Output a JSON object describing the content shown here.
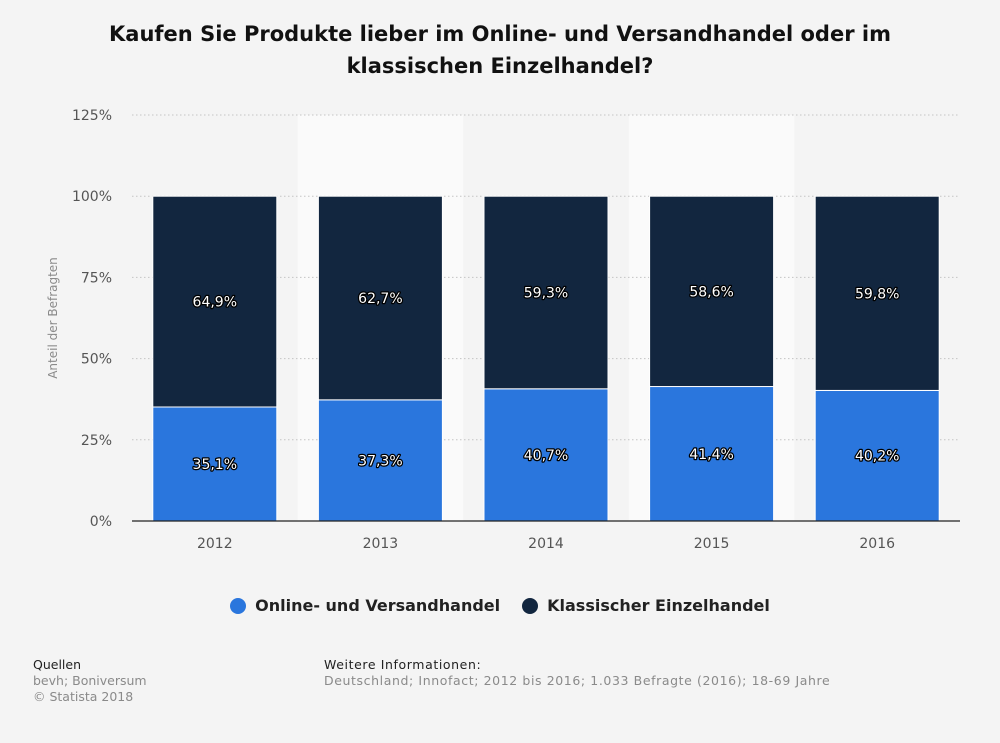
{
  "chart_data": {
    "type": "bar",
    "stacked": true,
    "title": "Kaufen Sie Produkte lieber im Online- und Versandhandel oder im klassischen Einzelhandel?",
    "title_lines": [
      "Kaufen Sie Produkte lieber im Online- und Versandhandel oder im",
      "klassischen Einzelhandel?"
    ],
    "categories": [
      "2012",
      "2013",
      "2014",
      "2015",
      "2016"
    ],
    "series": [
      {
        "name": "Online- und Versandhandel",
        "color": "#2a76dd",
        "values": [
          35.1,
          37.3,
          40.7,
          41.4,
          40.2
        ],
        "labels": [
          "35,1%",
          "37,3%",
          "40,7%",
          "41,4%",
          "40,2%"
        ]
      },
      {
        "name": "Klassischer Einzelhandel",
        "color": "#12263f",
        "values": [
          64.9,
          62.7,
          59.3,
          58.6,
          59.8
        ],
        "labels": [
          "64,9%",
          "62,7%",
          "59,3%",
          "58,6%",
          "59,8%"
        ]
      }
    ],
    "ylabel": "Anteil der Befragten",
    "xlabel": "",
    "ylim": [
      0,
      125
    ],
    "yticks": [
      0,
      25,
      50,
      75,
      100,
      125
    ],
    "ytick_labels": [
      "0%",
      "25%",
      "50%",
      "75%",
      "100%",
      "125%"
    ],
    "grid": true,
    "legend_position": "bottom"
  },
  "footer": {
    "sources_heading": "Quellen",
    "sources_text": "bevh; Boniversum",
    "copyright": "© Statista 2018",
    "info_heading": "Weitere Informationen:",
    "info_text": "Deutschland; Innofact; 2012 bis 2016; 1.033 Befragte (2016); 18-69 Jahre"
  }
}
